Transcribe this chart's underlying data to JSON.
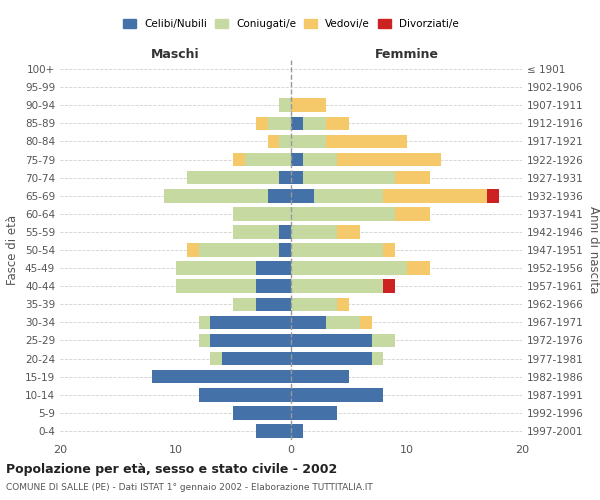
{
  "age_groups": [
    "0-4",
    "5-9",
    "10-14",
    "15-19",
    "20-24",
    "25-29",
    "30-34",
    "35-39",
    "40-44",
    "45-49",
    "50-54",
    "55-59",
    "60-64",
    "65-69",
    "70-74",
    "75-79",
    "80-84",
    "85-89",
    "90-94",
    "95-99",
    "100+"
  ],
  "birth_years": [
    "1997-2001",
    "1992-1996",
    "1987-1991",
    "1982-1986",
    "1977-1981",
    "1972-1976",
    "1967-1971",
    "1962-1966",
    "1957-1961",
    "1952-1956",
    "1947-1951",
    "1942-1946",
    "1937-1941",
    "1932-1936",
    "1927-1931",
    "1922-1926",
    "1917-1921",
    "1912-1916",
    "1907-1911",
    "1902-1906",
    "≤ 1901"
  ],
  "maschi": {
    "celibi": [
      3,
      5,
      8,
      12,
      6,
      7,
      7,
      3,
      3,
      3,
      1,
      1,
      0,
      2,
      1,
      0,
      0,
      0,
      0,
      0,
      0
    ],
    "coniugati": [
      0,
      0,
      0,
      0,
      1,
      1,
      1,
      2,
      7,
      7,
      7,
      4,
      5,
      9,
      8,
      4,
      1,
      2,
      1,
      0,
      0
    ],
    "vedovi": [
      0,
      0,
      0,
      0,
      0,
      0,
      0,
      0,
      0,
      0,
      1,
      0,
      0,
      0,
      0,
      1,
      1,
      1,
      0,
      0,
      0
    ],
    "divorziati": [
      0,
      0,
      0,
      0,
      0,
      0,
      0,
      0,
      0,
      0,
      0,
      0,
      0,
      0,
      0,
      0,
      0,
      0,
      0,
      0,
      0
    ]
  },
  "femmine": {
    "celibi": [
      1,
      4,
      8,
      5,
      7,
      7,
      3,
      0,
      0,
      0,
      0,
      0,
      0,
      2,
      1,
      1,
      0,
      1,
      0,
      0,
      0
    ],
    "coniugati": [
      0,
      0,
      0,
      0,
      1,
      2,
      3,
      4,
      8,
      10,
      8,
      4,
      9,
      6,
      8,
      3,
      3,
      2,
      0,
      0,
      0
    ],
    "vedovi": [
      0,
      0,
      0,
      0,
      0,
      0,
      1,
      1,
      0,
      2,
      1,
      2,
      3,
      9,
      3,
      9,
      7,
      2,
      3,
      0,
      0
    ],
    "divorziati": [
      0,
      0,
      0,
      0,
      0,
      0,
      0,
      0,
      1,
      0,
      0,
      0,
      0,
      1,
      0,
      0,
      0,
      0,
      0,
      0,
      0
    ]
  },
  "colors": {
    "celibi": "#4472a8",
    "coniugati": "#c5d9a0",
    "vedovi": "#f5c96a",
    "divorziati": "#cc2222"
  },
  "legend_labels": [
    "Celibi/Nubili",
    "Coniugati/e",
    "Vedovi/e",
    "Divorziati/e"
  ],
  "title": "Popolazione per età, sesso e stato civile - 2002",
  "subtitle": "COMUNE DI SALLE (PE) - Dati ISTAT 1° gennaio 2002 - Elaborazione TUTTITALIA.IT",
  "xlabel_left": "Maschi",
  "xlabel_right": "Femmine",
  "ylabel_left": "Fasce di età",
  "ylabel_right": "Anni di nascita",
  "xlim": 20,
  "background_color": "#ffffff",
  "grid_color": "#cccccc"
}
